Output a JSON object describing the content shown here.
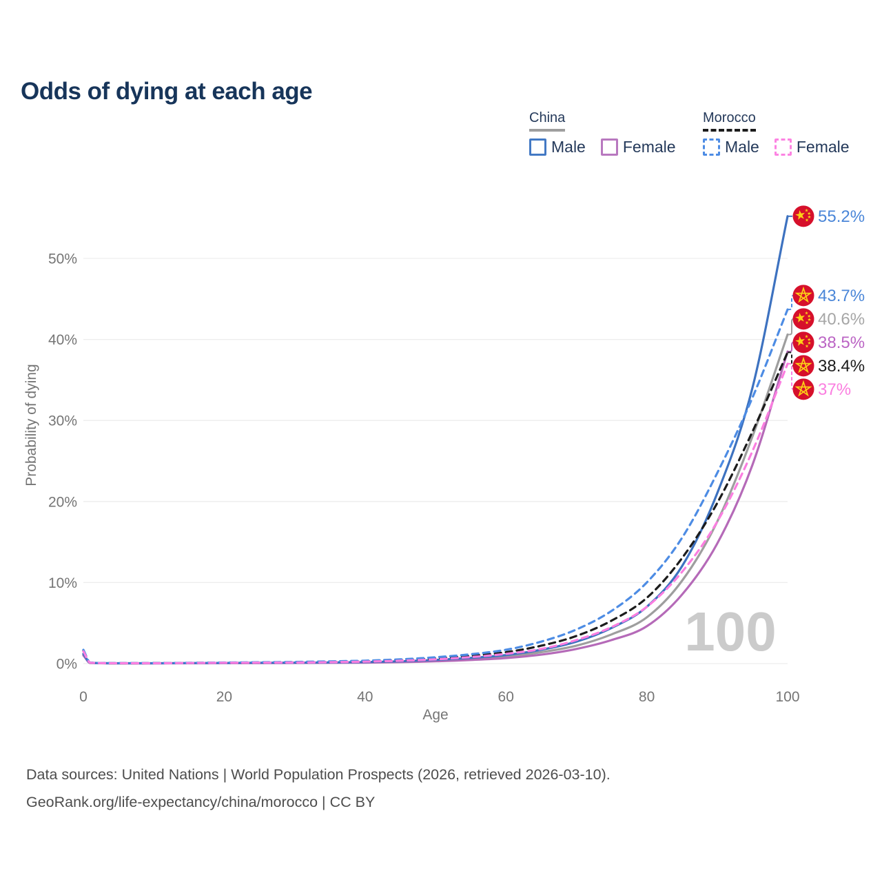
{
  "title": "Odds of dying at each age",
  "legend": {
    "groups": [
      {
        "country": "China",
        "line_style": "solid",
        "header_line_color": "#9e9e9e",
        "items": [
          {
            "label": "Male",
            "key": "china-male",
            "color": "#4379c4"
          },
          {
            "label": "Female",
            "key": "china-female",
            "color": "#b878bf"
          }
        ]
      },
      {
        "country": "Morocco",
        "line_style": "dashed",
        "header_line_color": "#1c1c1c",
        "items": [
          {
            "label": "Male",
            "key": "morocco-male",
            "color": "#4d8ce4"
          },
          {
            "label": "Female",
            "key": "morocco-female",
            "color": "#fc83e2"
          }
        ]
      }
    ]
  },
  "chart_data": {
    "type": "line",
    "title": "Odds of dying at each age",
    "xlabel": "Age",
    "ylabel": "Probability of dying",
    "xlim": [
      0,
      100
    ],
    "ylim": [
      0,
      56
    ],
    "x_ticks": [
      0,
      20,
      40,
      60,
      80,
      100
    ],
    "y_ticks": [
      0,
      10,
      20,
      30,
      40,
      50
    ],
    "y_tick_suffix": "%",
    "grid": "horizontal",
    "grid_color": "#ededed",
    "axis_text_color": "#757575",
    "watermark": "100",
    "watermark_color": "#cbcbcb",
    "legend_position": "top-right",
    "ages": [
      0,
      1,
      5,
      10,
      15,
      20,
      25,
      30,
      35,
      40,
      45,
      50,
      55,
      60,
      65,
      70,
      75,
      80,
      85,
      90,
      95,
      100
    ],
    "series": [
      {
        "key": "china-male",
        "name": "China Male",
        "country": "China",
        "sex": "Male",
        "color": "#3d72c0",
        "label_color": "#4a86d8",
        "dash": "solid",
        "flag": "china",
        "end_value": 55.2,
        "end_label": "55.2%",
        "values": [
          1.2,
          0.09,
          0.04,
          0.04,
          0.06,
          0.08,
          0.1,
          0.11,
          0.14,
          0.19,
          0.28,
          0.45,
          0.7,
          1.05,
          1.7,
          2.7,
          4.4,
          7.0,
          12.0,
          21.0,
          34.0,
          55.2
        ]
      },
      {
        "key": "morocco-male",
        "name": "Morocco Male",
        "country": "Morocco",
        "sex": "Male",
        "color": "#4d8ce4",
        "label_color": "#4a86d8",
        "dash": "dashed",
        "flag": "morocco",
        "end_value": 43.7,
        "end_label": "43.7%",
        "values": [
          1.7,
          0.12,
          0.05,
          0.06,
          0.09,
          0.13,
          0.16,
          0.2,
          0.27,
          0.36,
          0.52,
          0.78,
          1.15,
          1.7,
          2.7,
          4.2,
          6.5,
          10.0,
          15.5,
          23.5,
          32.8,
          43.7
        ]
      },
      {
        "key": "china-all",
        "name": "China",
        "country": "China",
        "sex": "All",
        "color": "#9e9e9e",
        "label_color": "#a6a6a6",
        "dash": "solid",
        "flag": "china",
        "end_value": 40.6,
        "end_label": "40.6%",
        "values": [
          1.1,
          0.08,
          0.035,
          0.035,
          0.05,
          0.065,
          0.08,
          0.09,
          0.12,
          0.16,
          0.23,
          0.37,
          0.57,
          0.87,
          1.4,
          2.2,
          3.6,
          5.7,
          10.2,
          17.5,
          28.0,
          40.6
        ]
      },
      {
        "key": "china-female",
        "name": "China Female",
        "country": "China",
        "sex": "Female",
        "color": "#b56ab8",
        "label_color": "#bb64c4",
        "dash": "solid",
        "flag": "china",
        "end_value": 38.5,
        "end_label": "38.5%",
        "values": [
          1.0,
          0.07,
          0.03,
          0.03,
          0.04,
          0.05,
          0.06,
          0.07,
          0.09,
          0.12,
          0.18,
          0.28,
          0.44,
          0.68,
          1.1,
          1.8,
          2.9,
          4.6,
          8.5,
          14.8,
          24.5,
          38.5
        ]
      },
      {
        "key": "morocco-all",
        "name": "Morocco",
        "country": "Morocco",
        "sex": "All",
        "color": "#1c1c1c",
        "label_color": "#1c1c1c",
        "dash": "dashed",
        "flag": "morocco",
        "end_value": 38.4,
        "end_label": "38.4%",
        "values": [
          1.6,
          0.11,
          0.045,
          0.05,
          0.075,
          0.11,
          0.13,
          0.16,
          0.21,
          0.29,
          0.42,
          0.63,
          0.95,
          1.4,
          2.2,
          3.4,
          5.3,
          8.1,
          13.0,
          19.8,
          28.6,
          38.4
        ]
      },
      {
        "key": "morocco-female",
        "name": "Morocco Female",
        "country": "Morocco",
        "sex": "Female",
        "color": "#fb7ee0",
        "label_color": "#fb7ee0",
        "dash": "dashed",
        "flag": "morocco",
        "end_value": 37,
        "end_label": "37%",
        "values": [
          1.5,
          0.1,
          0.04,
          0.045,
          0.065,
          0.09,
          0.11,
          0.13,
          0.17,
          0.24,
          0.35,
          0.52,
          0.8,
          1.2,
          1.8,
          2.9,
          4.5,
          7.0,
          11.3,
          17.5,
          26.2,
          37.0
        ]
      }
    ]
  },
  "flag_palette": {
    "red": "#d6102b",
    "gold": "#fcd116"
  },
  "footer": {
    "line1": "Data sources: United Nations | World Population Prospects (2026, retrieved 2026-03-10).",
    "line2": "GeoRank.org/life-expectancy/china/morocco | CC BY"
  }
}
